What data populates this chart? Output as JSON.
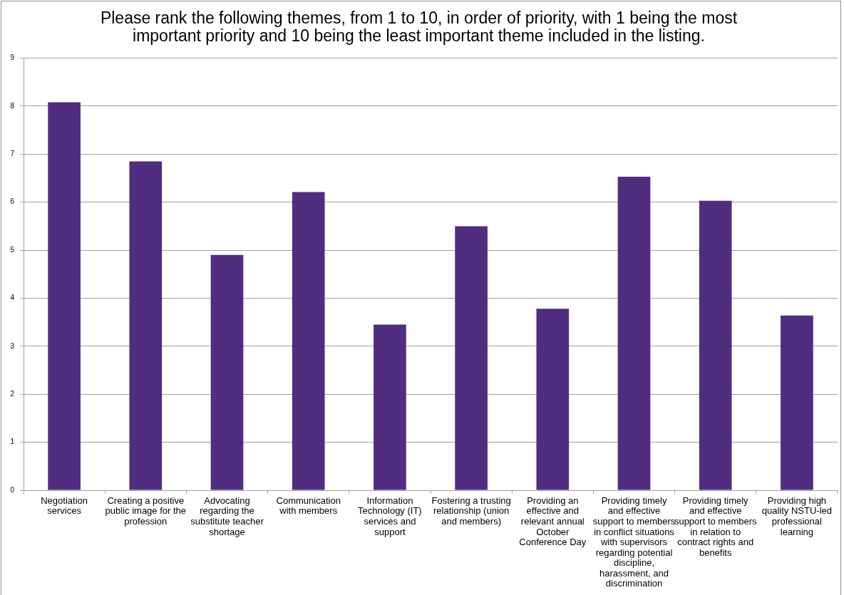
{
  "chart_data": {
    "type": "bar",
    "title": "Please rank the following themes, from 1 to 10, in order of priority, with 1 being the most important priority and 10 being the least important theme included in the listing.",
    "categories": [
      "Negotiation services",
      "Creating a positive public image for the profession",
      "Advocating regarding the substitute teacher shortage",
      "Communication with members",
      "Information Technology (IT) services and support",
      "Fostering a trusting relationship (union and members)",
      "Providing an effective and relevant annual October Conference Day",
      "Providing timely and effective support to members in conflict situations with supervisors regarding potential discipline, harassment, and discrimination",
      "Providing timely and effective support to members in relation to contract rights and benefits",
      "Providing high quality NSTU-led professional learning"
    ],
    "values": [
      8.08,
      6.85,
      4.9,
      6.21,
      3.45,
      5.5,
      3.78,
      6.53,
      6.03,
      3.64
    ],
    "color": "#502d7f",
    "ylim": [
      0,
      9
    ],
    "yticks": [
      0,
      1,
      2,
      3,
      4,
      5,
      6,
      7,
      8,
      9
    ],
    "grid": "y"
  }
}
